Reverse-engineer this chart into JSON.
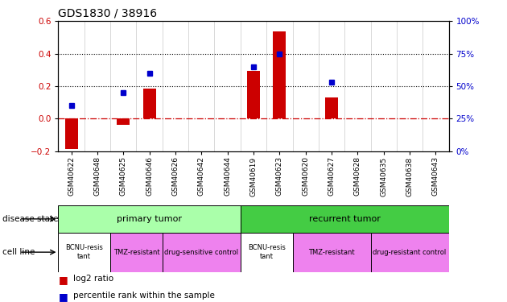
{
  "title": "GDS1830 / 38916",
  "samples": [
    "GSM40622",
    "GSM40648",
    "GSM40625",
    "GSM40646",
    "GSM40626",
    "GSM40642",
    "GSM40644",
    "GSM40619",
    "GSM40623",
    "GSM40620",
    "GSM40627",
    "GSM40628",
    "GSM40635",
    "GSM40638",
    "GSM40643"
  ],
  "log2_ratio": [
    -0.19,
    0.0,
    -0.04,
    0.185,
    0.0,
    0.0,
    0.0,
    0.295,
    0.535,
    0.0,
    0.13,
    0.0,
    0.0,
    0.0,
    0.0
  ],
  "percentile_rank_pct": [
    35,
    0,
    45,
    60,
    0,
    0,
    0,
    65,
    75,
    0,
    53,
    0,
    0,
    0,
    0
  ],
  "ylim_left": [
    -0.2,
    0.6
  ],
  "ylim_right": [
    0,
    100
  ],
  "yticks_left": [
    -0.2,
    0.0,
    0.2,
    0.4,
    0.6
  ],
  "yticks_right": [
    0,
    25,
    50,
    75,
    100
  ],
  "bar_color": "#cc0000",
  "dot_color": "#0000cc",
  "hline_color": "#cc0000",
  "dotted_line_color": "#000000",
  "disease_groups": [
    {
      "label": "primary tumor",
      "start": 0,
      "end": 7,
      "color": "#aaffaa"
    },
    {
      "label": "recurrent tumor",
      "start": 7,
      "end": 15,
      "color": "#44cc44"
    }
  ],
  "cell_line_groups": [
    {
      "label": "BCNU-resis\ntant",
      "start": 0,
      "end": 2,
      "color": "#ffffff"
    },
    {
      "label": "TMZ-resistant",
      "start": 2,
      "end": 4,
      "color": "#ee82ee"
    },
    {
      "label": "drug-sensitive control",
      "start": 4,
      "end": 7,
      "color": "#ee82ee"
    },
    {
      "label": "BCNU-resis\ntant",
      "start": 7,
      "end": 9,
      "color": "#ffffff"
    },
    {
      "label": "TMZ-resistant",
      "start": 9,
      "end": 12,
      "color": "#ee82ee"
    },
    {
      "label": "drug-resistant control",
      "start": 12,
      "end": 15,
      "color": "#ee82ee"
    }
  ],
  "tick_label_fontsize": 6.5,
  "title_fontsize": 10,
  "annotation_fontsize": 8
}
